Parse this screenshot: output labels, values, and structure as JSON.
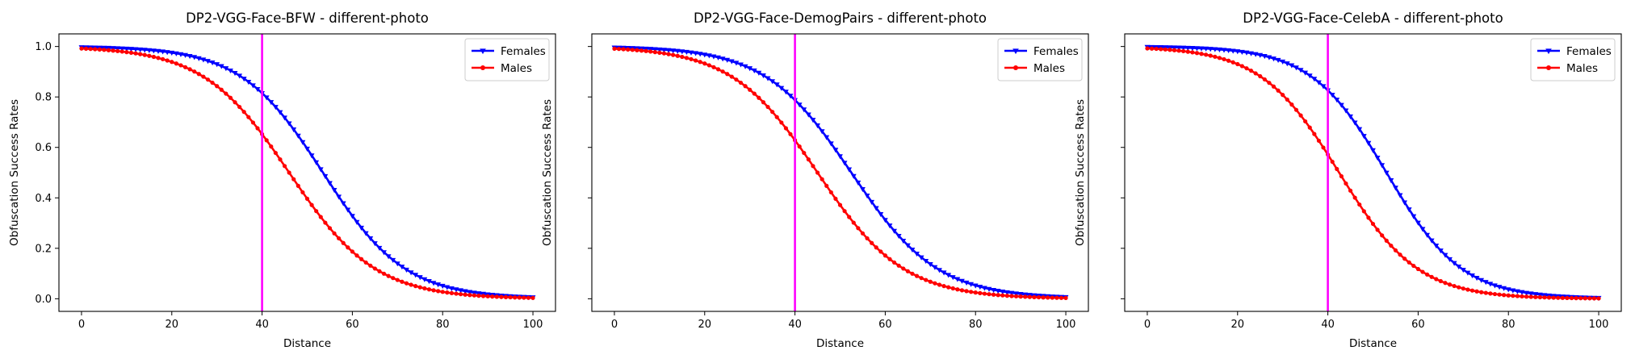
{
  "chart_data": [
    {
      "type": "line",
      "title": "DP2-VGG-Face-BFW - different-photo",
      "xlabel": "Distance",
      "ylabel": "Obfuscation Success Rates",
      "xlim": [
        -5,
        105
      ],
      "ylim": [
        -0.05,
        1.05
      ],
      "xticks": [
        "0",
        "20",
        "40",
        "60",
        "80",
        "100"
      ],
      "yticks": [
        "0.0",
        "0.2",
        "0.4",
        "0.6",
        "0.8",
        "1.0"
      ],
      "show_ytick_labels": true,
      "grid": false,
      "legend": "top-right",
      "vline": {
        "x": 40,
        "color": "#ff00ff"
      },
      "series": [
        {
          "name": "Females",
          "color": "#0000ff",
          "marker": "triangle-down",
          "mid": 53.5,
          "k": 0.11
        },
        {
          "name": "Males",
          "color": "#ff0000",
          "marker": "circle",
          "mid": 46.0,
          "k": 0.105
        }
      ]
    },
    {
      "type": "line",
      "title": "DP2-VGG-Face-DemogPairs - different-photo",
      "xlabel": "Distance",
      "ylabel": "Obfuscation Success Rates",
      "xlim": [
        -5,
        105
      ],
      "ylim": [
        -0.05,
        1.05
      ],
      "xticks": [
        "0",
        "20",
        "40",
        "60",
        "80",
        "100"
      ],
      "yticks": [
        "0.0",
        "0.2",
        "0.4",
        "0.6",
        "0.8",
        "1.0"
      ],
      "show_ytick_labels": false,
      "grid": false,
      "legend": "top-right",
      "vline": {
        "x": 40,
        "color": "#ff00ff"
      },
      "series": [
        {
          "name": "Females",
          "color": "#0000ff",
          "marker": "triangle-down",
          "mid": 52.5,
          "k": 0.105
        },
        {
          "name": "Males",
          "color": "#ff0000",
          "marker": "circle",
          "mid": 45.0,
          "k": 0.105
        }
      ]
    },
    {
      "type": "line",
      "title": "DP2-VGG-Face-CelebA - different-photo",
      "xlabel": "Distance",
      "ylabel": "Obfuscation Success Rates",
      "xlim": [
        -5,
        105
      ],
      "ylim": [
        -0.05,
        1.05
      ],
      "xticks": [
        "0",
        "20",
        "40",
        "60",
        "80",
        "100"
      ],
      "yticks": [
        "0.0",
        "0.2",
        "0.4",
        "0.6",
        "0.8",
        "1.0"
      ],
      "show_ytick_labels": false,
      "grid": false,
      "legend": "top-right",
      "vline": {
        "x": 40,
        "color": "#ff00ff"
      },
      "series": [
        {
          "name": "Females",
          "color": "#0000ff",
          "marker": "triangle-down",
          "mid": 53.0,
          "k": 0.12
        },
        {
          "name": "Males",
          "color": "#ff0000",
          "marker": "circle",
          "mid": 42.5,
          "k": 0.115
        }
      ]
    }
  ]
}
